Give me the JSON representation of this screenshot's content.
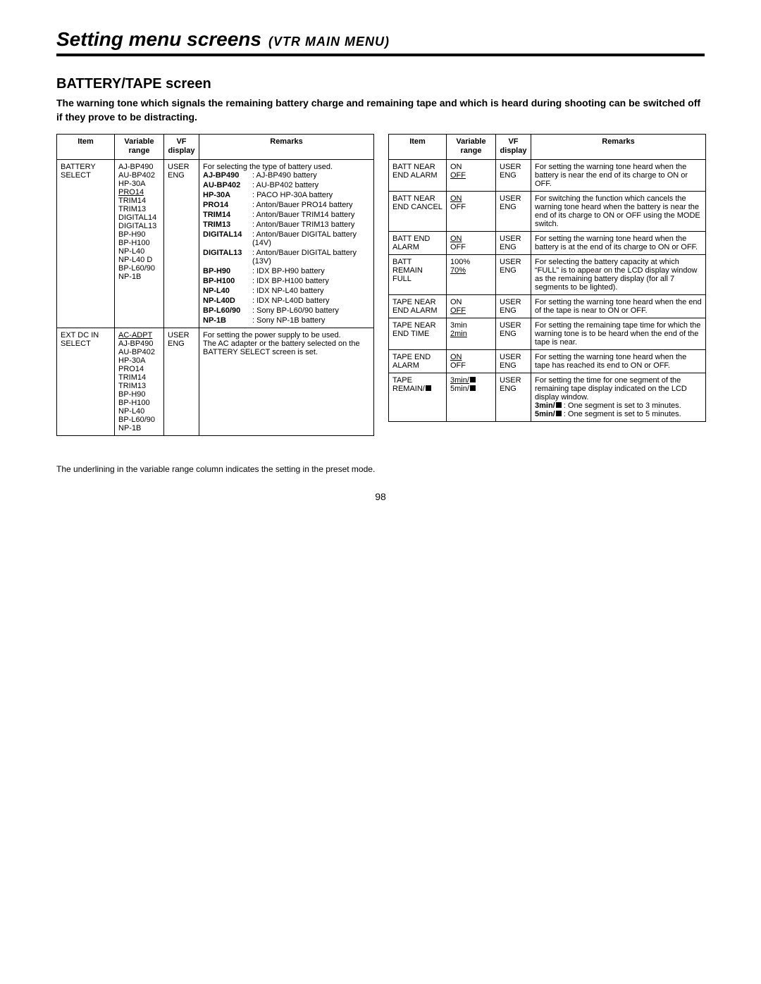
{
  "header": {
    "title_main": "Setting menu screens",
    "title_sub": "(VTR MAIN MENU)"
  },
  "section": {
    "title": "BATTERY/TAPE screen",
    "intro": "The warning tone which signals the remaining battery charge and remaining tape and which is heard during shooting can be switched off if they prove to be distracting."
  },
  "headers": {
    "item": "Item",
    "var": "Variable\nrange",
    "vf": "VF\ndisplay",
    "rem": "Remarks"
  },
  "left": {
    "r1": {
      "item": "BATTERY\nSELECT",
      "vf": "USER\nENG",
      "remarks_lead": "For selecting the type of battery used.",
      "var_opts": [
        "AJ-BP490",
        "AU-BP402",
        "HP-30A",
        "PRO14_u",
        "TRIM14",
        "TRIM13",
        "DIGITAL14",
        "DIGITAL13",
        "BP-H90",
        "BP-H100",
        "NP-L40",
        "NP-L40 D",
        "BP-L60/90",
        "NP-1B"
      ],
      "defs": [
        {
          "k": "AJ-BP490",
          "v": "AJ-BP490 battery"
        },
        {
          "k": "AU-BP402",
          "v": "AU-BP402 battery"
        },
        {
          "k": "HP-30A",
          "v": "PACO HP-30A battery"
        },
        {
          "k": "PRO14",
          "v": "Anton/Bauer PRO14 battery"
        },
        {
          "k": "TRIM14",
          "v": "Anton/Bauer TRIM14 battery"
        },
        {
          "k": "TRIM13",
          "v": "Anton/Bauer TRIM13 battery"
        },
        {
          "k": "DIGITAL14",
          "v": "Anton/Bauer DIGITAL battery (14V)"
        },
        {
          "k": "DIGITAL13",
          "v": "Anton/Bauer DIGITAL battery (13V)"
        },
        {
          "k": "BP-H90",
          "v": "IDX BP-H90 battery"
        },
        {
          "k": "BP-H100",
          "v": "IDX BP-H100 battery"
        },
        {
          "k": "NP-L40",
          "v": "IDX NP-L40 battery"
        },
        {
          "k": "NP-L40D",
          "v": "IDX NP-L40D battery"
        },
        {
          "k": "BP-L60/90",
          "v": "Sony BP-L60/90 battery"
        },
        {
          "k": "NP-1B",
          "v": "Sony NP-1B battery"
        }
      ]
    },
    "r2": {
      "item": "EXT DC IN\nSELECT",
      "vf": "USER\nENG",
      "var_opts": [
        "AC-ADPT_u",
        "AJ-BP490",
        "AU-BP402",
        "HP-30A",
        "PRO14",
        "TRIM14",
        "TRIM13",
        "BP-H90",
        "BP-H100",
        "NP-L40",
        "BP-L60/90",
        "NP-1B"
      ],
      "remarks": "For setting the power supply to be used.\nThe AC adapter or the battery selected on the BATTERY SELECT screen is set."
    }
  },
  "right": {
    "r1": {
      "item": "BATT NEAR\nEND ALARM",
      "var": [
        "ON",
        "OFF_u"
      ],
      "vf": "USER\nENG",
      "rem": "For setting the warning tone heard when the battery is near the end of its charge to ON or OFF."
    },
    "r2": {
      "item": "BATT NEAR\nEND CANCEL",
      "var": [
        "ON_u",
        "OFF"
      ],
      "vf": "USER\nENG",
      "rem": "For switching the function which cancels the warning tone heard when the battery is near the end of its charge to ON or OFF using the MODE switch."
    },
    "r3": {
      "item": "BATT END\nALARM",
      "var": [
        "ON_u",
        "OFF"
      ],
      "vf": "USER\nENG",
      "rem": "For setting the warning tone heard when the battery is at the end of its charge to ON or OFF."
    },
    "r4": {
      "item": "BATT REMAIN\nFULL",
      "var": [
        "100%",
        "70%_u"
      ],
      "vf": "USER\nENG",
      "rem": "For selecting the battery capacity at which “FULL” is to appear on the LCD display window as the remaining battery display (for all 7 segments to be lighted)."
    },
    "r5": {
      "item": "TAPE NEAR\nEND ALARM",
      "var": [
        "ON",
        "OFF_u"
      ],
      "vf": "USER\nENG",
      "rem": "For setting the warning tone heard when the end of the tape is near to ON or OFF."
    },
    "r6": {
      "item": "TAPE NEAR\nEND TIME",
      "var": [
        "3min",
        "2min_u"
      ],
      "vf": "USER\nENG",
      "rem": "For setting the remaining tape time for which the warning tone is to be heard when the end of the tape is near."
    },
    "r7": {
      "item": "TAPE END\nALARM",
      "var": [
        "ON_u",
        "OFF"
      ],
      "vf": "USER\nENG",
      "rem": "For setting the warning tone heard when the tape has reached its end to ON or OFF."
    },
    "r8": {
      "item": "TAPE REMAIN/",
      "var": [
        "3min/_u",
        "5min/"
      ],
      "vf": "USER\nENG",
      "rem_lead": "For setting the time for one segment of the remaining tape display indicated on the LCD display window.",
      "defs": [
        {
          "k": "3min/",
          "v": "One segment is set to 3 minutes."
        },
        {
          "k": "5min/",
          "v": "One segment is set to 5 minutes."
        }
      ]
    }
  },
  "footnote": "The underlining in the variable range column indicates the setting in the preset mode.",
  "page": "98"
}
